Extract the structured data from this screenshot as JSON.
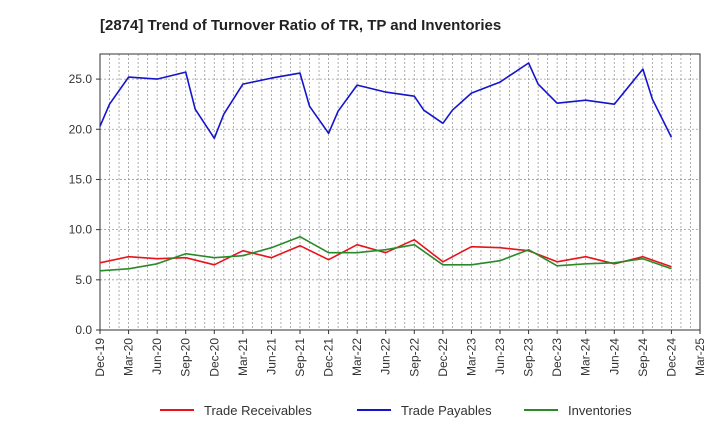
{
  "chart_data": {
    "type": "line",
    "title": "[2874]  Trend of Turnover Ratio of TR, TP and Inventories",
    "xlabel": "",
    "ylabel": "",
    "ylim": [
      0,
      27.5
    ],
    "yticks": [
      "0.0",
      "5.0",
      "10.0",
      "15.0",
      "20.0",
      "25.0"
    ],
    "ytick_values": [
      0,
      5,
      10,
      15,
      20,
      25
    ],
    "xtick_labels": [
      "Dec-19",
      "Mar-20",
      "Jun-20",
      "Sep-20",
      "Dec-20",
      "Mar-21",
      "Jun-21",
      "Sep-21",
      "Dec-21",
      "Mar-22",
      "Jun-22",
      "Sep-22",
      "Dec-22",
      "Mar-23",
      "Jun-23",
      "Sep-23",
      "Dec-23",
      "Mar-24",
      "Jun-24",
      "Sep-24",
      "Dec-24",
      "Mar-25"
    ],
    "x": [
      "Dec-19",
      "Jan-20",
      "Mar-20",
      "Jun-20",
      "Sep-20",
      "Oct-20",
      "Dec-20",
      "Jan-21",
      "Mar-21",
      "Jun-21",
      "Sep-21",
      "Oct-21",
      "Dec-21",
      "Jan-22",
      "Mar-22",
      "Jun-22",
      "Sep-22",
      "Oct-22",
      "Dec-22",
      "Jan-23",
      "Mar-23",
      "Jun-23",
      "Sep-23",
      "Oct-23",
      "Dec-23",
      "Jan-24",
      "Mar-24",
      "Jun-24",
      "Sep-24",
      "Oct-24",
      "Dec-24"
    ],
    "grid": true,
    "legend_position": "bottom",
    "series": [
      {
        "name": "Trade Receivables",
        "color": "#e8141b",
        "points": [
          [
            "Dec-19",
            6.7
          ],
          [
            "Mar-20",
            7.3
          ],
          [
            "Jun-20",
            7.1
          ],
          [
            "Sep-20",
            7.2
          ],
          [
            "Dec-20",
            6.5
          ],
          [
            "Mar-21",
            7.9
          ],
          [
            "Jun-21",
            7.2
          ],
          [
            "Sep-21",
            8.4
          ],
          [
            "Dec-21",
            7.0
          ],
          [
            "Mar-22",
            8.5
          ],
          [
            "Jun-22",
            7.7
          ],
          [
            "Sep-22",
            9.0
          ],
          [
            "Dec-22",
            6.8
          ],
          [
            "Mar-23",
            8.3
          ],
          [
            "Jun-23",
            8.2
          ],
          [
            "Sep-23",
            7.9
          ],
          [
            "Dec-23",
            6.8
          ],
          [
            "Mar-24",
            7.3
          ],
          [
            "Jun-24",
            6.6
          ],
          [
            "Sep-24",
            7.3
          ],
          [
            "Dec-24",
            6.3
          ]
        ]
      },
      {
        "name": "Trade Payables",
        "color": "#1414cc",
        "points": [
          [
            "Dec-19",
            20.3
          ],
          [
            "Jan-20",
            22.5
          ],
          [
            "Mar-20",
            25.2
          ],
          [
            "Jun-20",
            25.0
          ],
          [
            "Sep-20",
            25.7
          ],
          [
            "Oct-20",
            22.0
          ],
          [
            "Dec-20",
            19.1
          ],
          [
            "Jan-21",
            21.5
          ],
          [
            "Mar-21",
            24.5
          ],
          [
            "Jun-21",
            25.1
          ],
          [
            "Sep-21",
            25.6
          ],
          [
            "Oct-21",
            22.3
          ],
          [
            "Dec-21",
            19.6
          ],
          [
            "Jan-22",
            21.8
          ],
          [
            "Mar-22",
            24.4
          ],
          [
            "Jun-22",
            23.7
          ],
          [
            "Sep-22",
            23.3
          ],
          [
            "Oct-22",
            21.9
          ],
          [
            "Dec-22",
            20.6
          ],
          [
            "Jan-23",
            21.9
          ],
          [
            "Mar-23",
            23.6
          ],
          [
            "Jun-23",
            24.7
          ],
          [
            "Sep-23",
            26.6
          ],
          [
            "Oct-23",
            24.5
          ],
          [
            "Dec-23",
            22.6
          ],
          [
            "Jan-24",
            22.7
          ],
          [
            "Mar-24",
            22.9
          ],
          [
            "Jun-24",
            22.5
          ],
          [
            "Sep-24",
            26.0
          ],
          [
            "Oct-24",
            23.0
          ],
          [
            "Dec-24",
            19.2
          ]
        ]
      },
      {
        "name": "Inventories",
        "color": "#2a8a2a",
        "points": [
          [
            "Dec-19",
            5.9
          ],
          [
            "Mar-20",
            6.1
          ],
          [
            "Jun-20",
            6.6
          ],
          [
            "Sep-20",
            7.6
          ],
          [
            "Dec-20",
            7.2
          ],
          [
            "Mar-21",
            7.4
          ],
          [
            "Jun-21",
            8.2
          ],
          [
            "Sep-21",
            9.3
          ],
          [
            "Dec-21",
            7.7
          ],
          [
            "Mar-22",
            7.7
          ],
          [
            "Jun-22",
            8.0
          ],
          [
            "Sep-22",
            8.5
          ],
          [
            "Dec-22",
            6.5
          ],
          [
            "Mar-23",
            6.5
          ],
          [
            "Jun-23",
            6.9
          ],
          [
            "Sep-23",
            8.0
          ],
          [
            "Dec-23",
            6.4
          ],
          [
            "Mar-24",
            6.6
          ],
          [
            "Jun-24",
            6.7
          ],
          [
            "Sep-24",
            7.1
          ],
          [
            "Dec-24",
            6.1
          ]
        ]
      }
    ]
  }
}
